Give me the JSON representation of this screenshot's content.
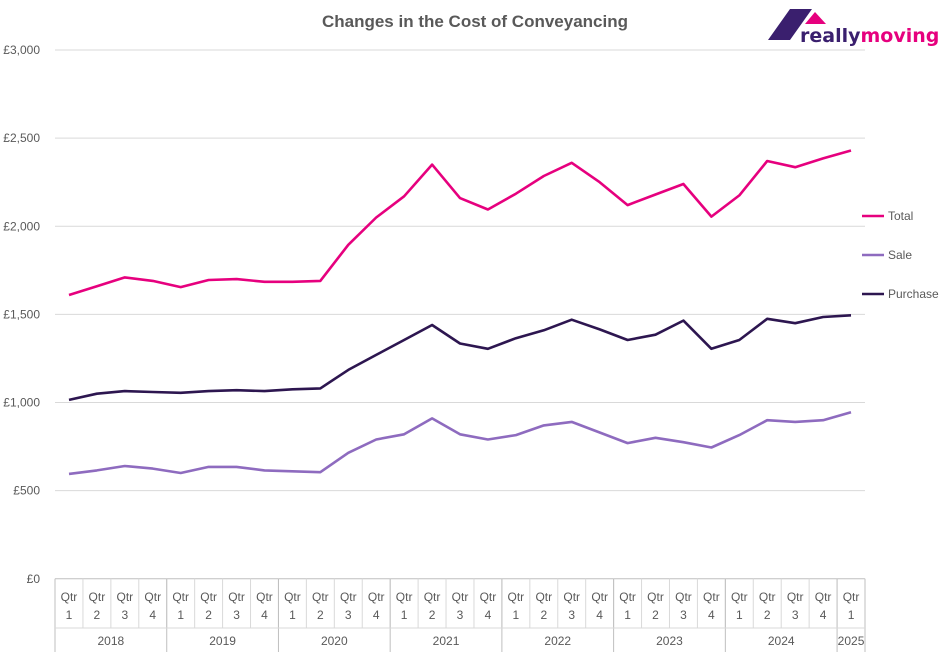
{
  "chart_data": {
    "type": "line",
    "title": "Changes in the Cost of Conveyancing",
    "logo": {
      "text_part1": "really",
      "text_part2": "moving",
      "colors": [
        "#3a1f6e",
        "#e6007e"
      ]
    },
    "xlabel": "",
    "ylabel": "",
    "ylim": [
      0,
      3000
    ],
    "yticks": [
      0,
      500,
      1000,
      1500,
      2000,
      2500,
      3000
    ],
    "ytick_labels": [
      "£0",
      "£500",
      "£1,000",
      "£1,500",
      "£2,000",
      "£2,500",
      "£3,000"
    ],
    "grid": true,
    "legend_position": "right",
    "years": [
      {
        "label": "2018",
        "quarters": [
          "1",
          "2",
          "3",
          "4"
        ]
      },
      {
        "label": "2019",
        "quarters": [
          "1",
          "2",
          "3",
          "4"
        ]
      },
      {
        "label": "2020",
        "quarters": [
          "1",
          "2",
          "3",
          "4"
        ]
      },
      {
        "label": "2021",
        "quarters": [
          "1",
          "2",
          "3",
          "4"
        ]
      },
      {
        "label": "2022",
        "quarters": [
          "1",
          "2",
          "3",
          "4"
        ]
      },
      {
        "label": "2023",
        "quarters": [
          "1",
          "2",
          "3",
          "4"
        ]
      },
      {
        "label": "2024",
        "quarters": [
          "1",
          "2",
          "3",
          "4"
        ]
      },
      {
        "label": "2025",
        "quarters": [
          "1"
        ]
      }
    ],
    "quarter_prefix": "Qtr",
    "series": [
      {
        "name": "Total",
        "color": "#e6007e",
        "values": [
          1610,
          1660,
          1710,
          1690,
          1655,
          1695,
          1700,
          1685,
          1685,
          1690,
          1895,
          2050,
          2170,
          2350,
          2160,
          2095,
          2185,
          2285,
          2360,
          2250,
          2120,
          2180,
          2240,
          2055,
          2175,
          2370,
          2335,
          2385,
          2430
        ]
      },
      {
        "name": "Sale",
        "color": "#8e6bbf",
        "values": [
          595,
          615,
          640,
          625,
          600,
          635,
          635,
          615,
          610,
          605,
          715,
          790,
          820,
          910,
          820,
          790,
          815,
          870,
          890,
          830,
          770,
          800,
          775,
          745,
          815,
          900,
          890,
          900,
          945
        ]
      },
      {
        "name": "Purchase",
        "color": "#2d1650",
        "values": [
          1015,
          1050,
          1065,
          1060,
          1055,
          1065,
          1070,
          1065,
          1075,
          1080,
          1185,
          1270,
          1355,
          1440,
          1335,
          1305,
          1365,
          1410,
          1470,
          1415,
          1355,
          1385,
          1465,
          1305,
          1355,
          1475,
          1450,
          1485,
          1495
        ]
      }
    ]
  }
}
